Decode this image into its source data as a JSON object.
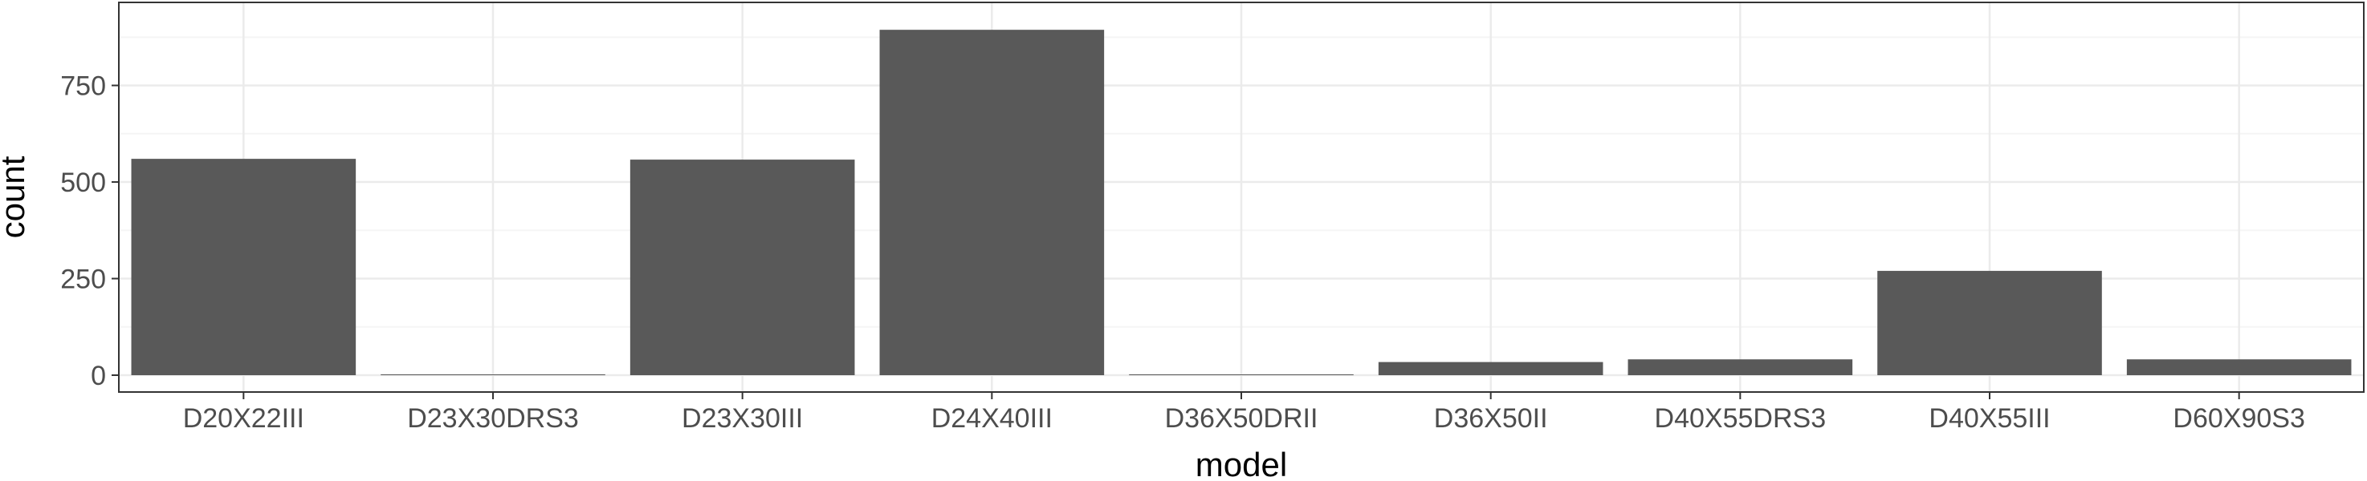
{
  "chart_data": {
    "type": "bar",
    "title": "",
    "xlabel": "model",
    "ylabel": "count",
    "categories": [
      "D20X22III",
      "D23X30DRS3",
      "D23X30III",
      "D24X40III",
      "D36X50DRII",
      "D36X50II",
      "D40X55DRS3",
      "D40X55III",
      "D60X90S3"
    ],
    "values": [
      560,
      1,
      558,
      894,
      2,
      34,
      41,
      270,
      41
    ],
    "ylim": [
      0,
      940
    ],
    "yticks": [
      0,
      250,
      500,
      750
    ],
    "grid": true,
    "theme": "bw",
    "colors": {
      "bar": "#595959",
      "grid_major": "#ebebeb",
      "grid_minor": "#f5f5f5",
      "border": "#333333"
    }
  }
}
